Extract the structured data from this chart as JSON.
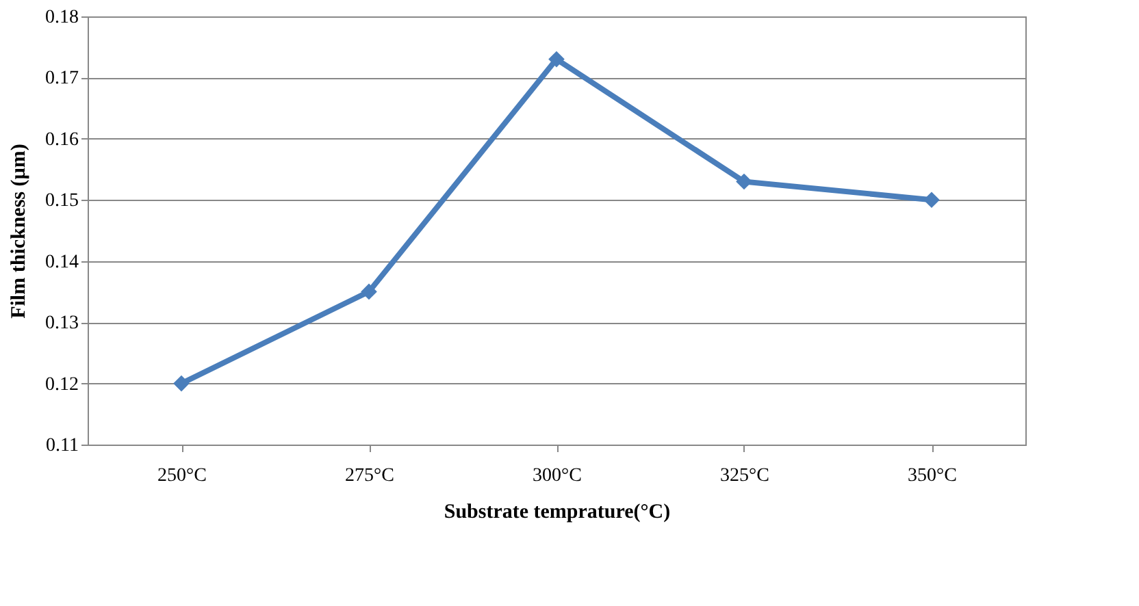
{
  "chart_data": {
    "type": "line",
    "xlabel": "Substrate temprature(°C)",
    "ylabel": "Film thickness (µm)",
    "categories": [
      "250°C",
      "275°C",
      "300°C",
      "325°C",
      "350°C"
    ],
    "series": [
      {
        "color": "#4a7ebb",
        "values": [
          0.12,
          0.135,
          0.173,
          0.153,
          0.15
        ]
      }
    ],
    "ylim": [
      0.11,
      0.18
    ],
    "yticks": [
      0.11,
      0.12,
      0.13,
      0.14,
      0.15,
      0.16,
      0.17,
      0.18
    ],
    "grid": "y",
    "marker": "diamond",
    "line_style": "solid",
    "legend": false
  }
}
